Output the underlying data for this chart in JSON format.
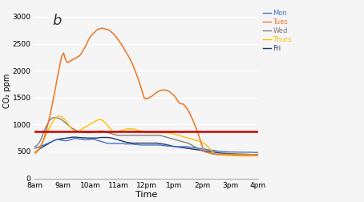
{
  "title": "b",
  "xlabel": "Time",
  "ylabel": "CO₂ ppm",
  "x_ticks": [
    "8am",
    "9am",
    "10am",
    "11am",
    "12pm",
    "1pm",
    "2pm",
    "3pm",
    "4pm"
  ],
  "ylim": [
    0,
    3250
  ],
  "yticks": [
    0,
    500,
    1000,
    1500,
    2000,
    2500,
    3000
  ],
  "reference_line": 870,
  "reference_color": "#cc0000",
  "background_color": "#f5f5f5",
  "legend_labels": [
    "Mon",
    "Tues",
    "Wed",
    "Thurs",
    "Fri"
  ],
  "legend_colors": [
    "#4472c4",
    "#ed7d31",
    "#808080",
    "#ffc000",
    "#1f3864"
  ],
  "Mon": [
    560,
    570,
    580,
    600,
    610,
    620,
    640,
    650,
    670,
    680,
    700,
    710,
    720,
    720,
    710,
    710,
    700,
    700,
    710,
    720,
    730,
    740,
    740,
    740,
    730,
    730,
    720,
    720,
    720,
    720,
    730,
    730,
    720,
    710,
    700,
    690,
    680,
    670,
    660,
    650,
    650,
    650,
    650,
    650,
    650,
    650,
    650,
    650,
    640,
    640,
    640,
    640,
    640,
    630,
    630,
    630,
    620,
    620,
    620,
    620,
    620,
    620,
    620,
    620,
    620,
    620,
    620,
    620,
    610,
    610,
    605,
    600,
    600,
    595,
    590,
    590,
    590,
    590,
    590,
    590,
    590,
    590,
    585,
    580,
    575,
    570,
    565,
    560,
    555,
    550,
    545,
    540,
    535,
    530,
    525,
    520,
    515,
    510,
    505,
    500,
    500,
    495,
    495,
    492,
    490,
    490,
    490,
    490,
    488,
    488,
    487,
    487,
    486,
    486,
    486,
    485,
    484,
    483,
    482,
    481
  ],
  "Tues": [
    470,
    490,
    530,
    590,
    670,
    770,
    890,
    1030,
    1190,
    1360,
    1540,
    1730,
    1920,
    2100,
    2270,
    2330,
    2200,
    2150,
    2170,
    2190,
    2210,
    2230,
    2250,
    2270,
    2310,
    2370,
    2430,
    2500,
    2580,
    2640,
    2680,
    2710,
    2750,
    2770,
    2780,
    2790,
    2780,
    2770,
    2760,
    2740,
    2710,
    2680,
    2640,
    2590,
    2540,
    2490,
    2430,
    2370,
    2310,
    2250,
    2180,
    2100,
    2010,
    1920,
    1820,
    1710,
    1590,
    1480,
    1480,
    1490,
    1510,
    1530,
    1560,
    1590,
    1610,
    1630,
    1640,
    1640,
    1640,
    1630,
    1610,
    1580,
    1550,
    1510,
    1460,
    1400,
    1390,
    1380,
    1350,
    1300,
    1240,
    1170,
    1090,
    1010,
    920,
    820,
    710,
    600,
    500,
    490,
    480,
    470,
    462,
    456,
    452,
    450,
    449,
    449,
    449,
    449,
    449,
    449,
    449,
    449,
    448,
    447,
    446,
    445,
    444,
    444,
    444,
    444,
    443,
    442,
    441,
    440,
    440
  ],
  "Wed": [
    590,
    610,
    650,
    710,
    800,
    890,
    970,
    1040,
    1090,
    1120,
    1130,
    1130,
    1120,
    1110,
    1090,
    1060,
    1030,
    1000,
    970,
    940,
    920,
    900,
    880,
    870,
    860,
    860,
    855,
    850,
    850,
    850,
    855,
    860,
    870,
    875,
    880,
    880,
    870,
    860,
    850,
    840,
    830,
    820,
    810,
    800,
    800,
    800,
    800,
    800,
    800,
    800,
    800,
    800,
    800,
    800,
    800,
    800,
    800,
    800,
    800,
    800,
    800,
    800,
    800,
    800,
    800,
    800,
    790,
    780,
    770,
    760,
    750,
    740,
    730,
    720,
    710,
    700,
    690,
    680,
    670,
    660,
    650,
    630,
    610,
    590,
    570,
    550,
    530,
    510,
    500,
    490,
    480,
    470,
    460,
    450,
    445,
    440,
    438,
    437,
    436,
    435,
    434,
    433,
    432,
    432,
    431,
    431,
    430,
    430,
    430,
    429,
    429,
    429,
    428,
    428,
    427,
    427,
    427
  ],
  "Thurs": [
    490,
    510,
    540,
    590,
    660,
    740,
    820,
    890,
    960,
    1020,
    1080,
    1120,
    1150,
    1160,
    1150,
    1120,
    1090,
    1040,
    990,
    940,
    900,
    870,
    860,
    870,
    890,
    920,
    940,
    960,
    980,
    1000,
    1020,
    1040,
    1060,
    1080,
    1090,
    1090,
    1070,
    1040,
    1000,
    960,
    920,
    880,
    860,
    860,
    870,
    880,
    890,
    900,
    910,
    920,
    920,
    920,
    920,
    910,
    900,
    890,
    880,
    870,
    860,
    850,
    850,
    850,
    850,
    850,
    850,
    850,
    850,
    850,
    850,
    850,
    850,
    845,
    840,
    830,
    820,
    810,
    800,
    790,
    780,
    770,
    760,
    750,
    740,
    730,
    720,
    710,
    700,
    690,
    680,
    660,
    640,
    610,
    570,
    530,
    490,
    460,
    445,
    440,
    438,
    435,
    433,
    430,
    428,
    426,
    424,
    422,
    420,
    420,
    419,
    419,
    418,
    418,
    418,
    417,
    417,
    417,
    417,
    416,
    416
  ],
  "Fri": [
    490,
    510,
    530,
    560,
    580,
    600,
    620,
    640,
    660,
    680,
    700,
    715,
    725,
    730,
    735,
    740,
    745,
    750,
    755,
    760,
    765,
    765,
    765,
    760,
    760,
    755,
    755,
    755,
    750,
    750,
    750,
    750,
    750,
    750,
    755,
    760,
    760,
    760,
    760,
    760,
    755,
    750,
    740,
    730,
    720,
    710,
    700,
    690,
    680,
    670,
    665,
    660,
    655,
    655,
    655,
    655,
    655,
    655,
    655,
    655,
    655,
    655,
    655,
    655,
    655,
    655,
    650,
    645,
    640,
    635,
    628,
    620,
    612,
    604,
    596,
    590,
    585,
    580,
    575,
    570,
    565,
    560,
    555,
    550,
    545,
    540,
    535,
    530,
    525,
    520,
    515,
    510,
    505,
    500,
    495,
    490,
    485,
    480,
    475,
    471,
    468,
    466,
    464,
    462,
    460,
    458,
    456,
    454,
    452,
    451,
    450,
    449,
    448,
    447,
    446,
    445,
    444,
    443,
    442,
    441
  ]
}
